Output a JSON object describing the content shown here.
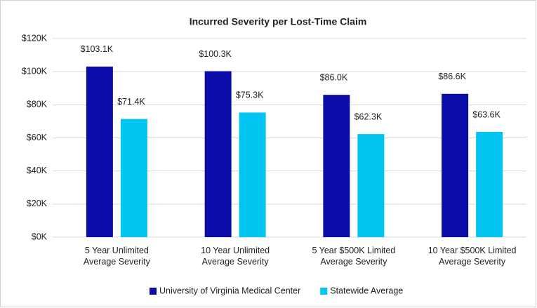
{
  "chart_data": {
    "type": "bar",
    "title": "Incurred Severity per Lost-Time Claim",
    "categories": [
      "5 Year Unlimited\nAverage Severity",
      "10 Year Unlimited\nAverage Severity",
      "5 Year $500K Limited\nAverage Severity",
      "10 Year $500K Limited\nAverage Severity"
    ],
    "series": [
      {
        "name": "University of Virginia Medical Center",
        "color": "#0c0ca8",
        "values": [
          103100,
          100300,
          86000,
          86600
        ],
        "value_labels": [
          "$103.1K",
          "$100.3K",
          "$86.0K",
          "$86.6K"
        ]
      },
      {
        "name": "Statewide Average",
        "color": "#00c5f0",
        "values": [
          71400,
          75300,
          62300,
          63600
        ],
        "value_labels": [
          "$71.4K",
          "$75.3K",
          "$62.3K",
          "$63.6K"
        ]
      }
    ],
    "ylim": [
      0,
      120000
    ],
    "yticks": [
      {
        "value": 0,
        "label": "$0K"
      },
      {
        "value": 20000,
        "label": "$20K"
      },
      {
        "value": 40000,
        "label": "$40K"
      },
      {
        "value": 60000,
        "label": "$60K"
      },
      {
        "value": 80000,
        "label": "$80K"
      },
      {
        "value": 100000,
        "label": "$100K"
      },
      {
        "value": 120000,
        "label": "$120K"
      }
    ],
    "grid": true,
    "legend": "bottom"
  }
}
